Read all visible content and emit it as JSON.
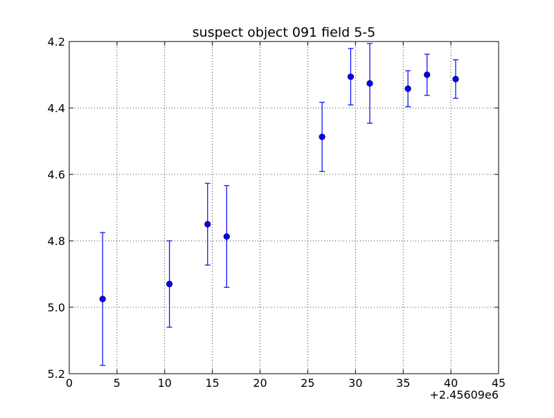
{
  "chart_data": {
    "type": "scatter",
    "title": "suspect object 091 field 5-5",
    "xlabel": "",
    "ylabel": "",
    "x_offset_label": "+2.45609e6",
    "xlim": [
      0,
      45
    ],
    "ylim": [
      5.2,
      4.2
    ],
    "y_inverted": true,
    "x_ticks": [
      0,
      5,
      10,
      15,
      20,
      25,
      30,
      35,
      40,
      45
    ],
    "y_ticks": [
      4.2,
      4.4,
      4.6,
      4.8,
      5.0,
      5.2
    ],
    "x_tick_labels": [
      "0",
      "5",
      "10",
      "15",
      "20",
      "25",
      "30",
      "35",
      "40",
      "45"
    ],
    "y_tick_labels": [
      "4.2",
      "4.4",
      "4.6",
      "4.8",
      "5.0",
      "5.2"
    ],
    "grid": true,
    "series": [
      {
        "color": "#0000ff",
        "marker": "circle",
        "error_bars": true,
        "points": [
          {
            "x": 3.5,
            "y": 4.975,
            "yerr": 0.2
          },
          {
            "x": 10.5,
            "y": 4.93,
            "yerr": 0.13
          },
          {
            "x": 14.5,
            "y": 4.75,
            "yerr": 0.123
          },
          {
            "x": 16.5,
            "y": 4.787,
            "yerr": 0.153
          },
          {
            "x": 26.5,
            "y": 4.487,
            "yerr": 0.104
          },
          {
            "x": 29.5,
            "y": 4.306,
            "yerr": 0.085
          },
          {
            "x": 31.5,
            "y": 4.326,
            "yerr": 0.12
          },
          {
            "x": 35.5,
            "y": 4.342,
            "yerr": 0.054
          },
          {
            "x": 37.5,
            "y": 4.3,
            "yerr": 0.062
          },
          {
            "x": 40.5,
            "y": 4.313,
            "yerr": 0.058
          }
        ]
      }
    ]
  }
}
